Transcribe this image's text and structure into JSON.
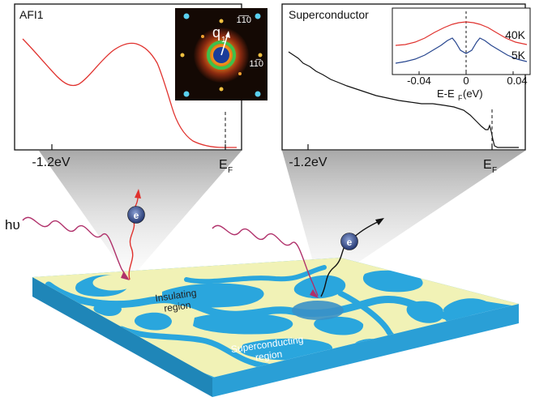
{
  "left_panel": {
    "label": "AFI1",
    "tick_left": "-1.2eV",
    "tick_right_main": "E",
    "tick_right_sub": "F",
    "inset": {
      "vector_label_main": "q",
      "vector_label_sub": "1",
      "bragg_label_top": "1̅1̅0",
      "bragg_label_right": "11̅0"
    }
  },
  "right_panel": {
    "label": "Superconductor",
    "tick_left": "-1.2eV",
    "tick_right_main": "E",
    "tick_right_sub": "F",
    "inset": {
      "legend": [
        "40K",
        "5K"
      ],
      "ticks": [
        "-0.04",
        "0",
        "0.04"
      ],
      "xlabel_main": "E-E",
      "xlabel_sub": "F",
      "xlabel_unit": " (eV)",
      "colors": {
        "40K": "#e0322e",
        "5K": "#27468f"
      }
    }
  },
  "photon_label": "hυ",
  "electron_label": "e",
  "region_labels": {
    "insulating_line1": "Insulating",
    "insulating_line2": "region",
    "superconducting_line1": "Superconducting",
    "superconducting_line2": "region"
  },
  "colors": {
    "edc_left": "#e0322e",
    "edc_right": "#111111",
    "substrate": "#2aa6dd",
    "substrate_side": "#1f8fc5",
    "domain": "#f1f2b6",
    "photon": "#b0306a",
    "electron_path_left": "#e0322e",
    "electron_path_right": "#111111",
    "electron": "#22356e"
  }
}
